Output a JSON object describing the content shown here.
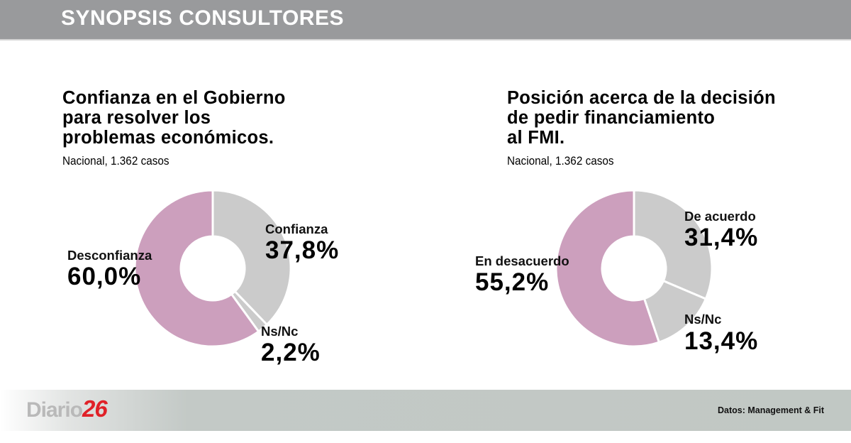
{
  "header": {
    "title": "SYNOPSIS CONSULTORES"
  },
  "colors": {
    "pink": "#cc9fbd",
    "gray": "#cbcbcb",
    "header_bg": "#999a9c",
    "logo_red": "#e02128"
  },
  "charts": [
    {
      "title_lines": [
        "Confianza en el Gobierno",
        "para resolver los",
        "problemas económicos."
      ],
      "subtitle": "Nacional, 1.362 casos",
      "slices": [
        {
          "label": "Confianza",
          "value_text": "37,8%"
        },
        {
          "label": "Ns/Nc",
          "value_text": "2,2%"
        },
        {
          "label": "Desconfianza",
          "value_text": "60,0%"
        }
      ]
    },
    {
      "title_lines": [
        "Posición acerca de la decisión",
        "de pedir financiamiento",
        "al FMI."
      ],
      "subtitle": "Nacional, 1.362 casos",
      "slices": [
        {
          "label": "De acuerdo",
          "value_text": "31,4%"
        },
        {
          "label": "Ns/Nc",
          "value_text": "13,4%"
        },
        {
          "label": "En desacuerdo",
          "value_text": "55,2%"
        }
      ]
    }
  ],
  "footer": {
    "logo_text": "Diario",
    "logo_number": "26",
    "source": "Datos: Management & Fit"
  },
  "chart_data": [
    {
      "type": "pie",
      "title": "Confianza en el Gobierno para resolver los problemas económicos.",
      "subtitle": "Nacional, 1.362 casos",
      "categories": [
        "Confianza",
        "Ns/Nc",
        "Desconfianza"
      ],
      "values": [
        37.8,
        2.2,
        60.0
      ],
      "colors": [
        "#cbcbcb",
        "#cbcbcb",
        "#cc9fbd"
      ],
      "donut": true,
      "legend": "inline labels"
    },
    {
      "type": "pie",
      "title": "Posición acerca de la decisión de pedir financiamiento al FMI.",
      "subtitle": "Nacional, 1.362 casos",
      "categories": [
        "De acuerdo",
        "Ns/Nc",
        "En desacuerdo"
      ],
      "values": [
        31.4,
        13.4,
        55.2
      ],
      "colors": [
        "#cbcbcb",
        "#cbcbcb",
        "#cc9fbd"
      ],
      "donut": true,
      "legend": "inline labels"
    }
  ]
}
